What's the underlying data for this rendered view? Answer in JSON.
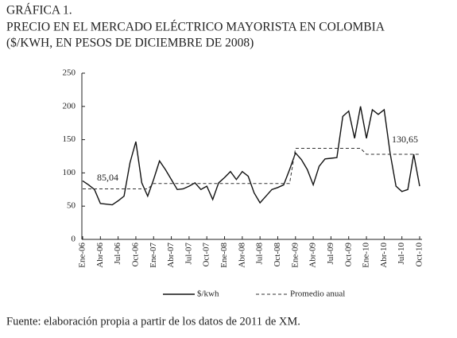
{
  "chart_data": {
    "type": "line",
    "title": [
      "GRÁFICA 1.",
      "PRECIO EN EL MERCADO ELÉCTRICO MAYORISTA EN COLOMBIA",
      "($/KWH, EN PESOS DE DICIEMBRE DE 2008)"
    ],
    "categories": [
      "Ene-06",
      null,
      null,
      "Abr-06",
      null,
      null,
      "Jul-06",
      null,
      null,
      "Oct-06",
      null,
      null,
      "Ene-07",
      null,
      null,
      "Abr-07",
      null,
      null,
      "Jul-07",
      null,
      null,
      "Oct-07",
      null,
      null,
      "Ene-08",
      null,
      null,
      "Abr-08",
      null,
      null,
      "Jul-08",
      null,
      null,
      "Oct-08",
      null,
      null,
      "Ene-09",
      null,
      null,
      "Abr-09",
      null,
      null,
      "Jul-09",
      null,
      null,
      "Oct-09",
      null,
      null,
      "Ene-10",
      null,
      null,
      "Abr-10",
      null,
      null,
      "Jul-10",
      null,
      null,
      "Oct-10"
    ],
    "series": [
      {
        "name": "$/kwh",
        "color": "#111",
        "dashed": false,
        "values": [
          88,
          82,
          75,
          54,
          53,
          52,
          58,
          65,
          115,
          147,
          85,
          65,
          90,
          118,
          105,
          90,
          75,
          76,
          80,
          85,
          75,
          80,
          60,
          85,
          93,
          102,
          90,
          102,
          95,
          70,
          55,
          65,
          75,
          78,
          82,
          105,
          130,
          120,
          105,
          82,
          110,
          121,
          122,
          123,
          185,
          193,
          152,
          200,
          152,
          195,
          188,
          195,
          130,
          80,
          72,
          75,
          128,
          80
        ]
      },
      {
        "name": "Promedio anual",
        "color": "#333",
        "dashed": true,
        "values": [
          76,
          76,
          76,
          76,
          76,
          76,
          76,
          76,
          76,
          76,
          76,
          76,
          84,
          84,
          84,
          84,
          84,
          84,
          84,
          84,
          84,
          84,
          84,
          84,
          84,
          84,
          84,
          84,
          84,
          84,
          84,
          84,
          84,
          84,
          84,
          84,
          137,
          137,
          137,
          137,
          137,
          137,
          137,
          137,
          137,
          137,
          137,
          137,
          128,
          128,
          128,
          128,
          128,
          128,
          128,
          128,
          128,
          128
        ]
      }
    ],
    "annotations": [
      "85,04",
      "130,65"
    ],
    "ylim": [
      0,
      250
    ],
    "yticks": [
      0,
      50,
      100,
      150,
      200,
      250
    ],
    "source": "Fuente: elaboración propia a partir de los datos de 2011 de XM."
  }
}
